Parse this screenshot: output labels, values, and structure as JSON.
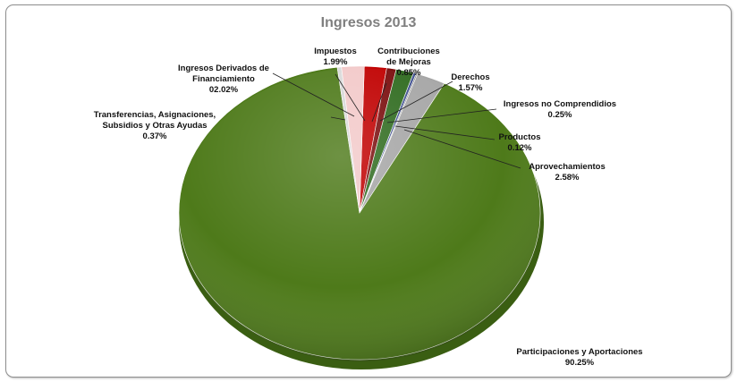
{
  "chart_data": {
    "type": "pie",
    "title": "Ingresos 2013",
    "slices": [
      {
        "label_lines": [
          "Impuestos",
          "1.99%"
        ],
        "value": 1.99,
        "color": "#c00000"
      },
      {
        "label_lines": [
          "Contribuciones",
          "de Mejoras",
          "0.85%"
        ],
        "value": 0.85,
        "color": "#7a0d0d"
      },
      {
        "label_lines": [
          "Derechos",
          "1.57%"
        ],
        "value": 1.57,
        "color": "#2f6b1f"
      },
      {
        "label_lines": [
          "Ingresos no Comprendidios",
          "0.25%"
        ],
        "value": 0.25,
        "color": "#3f4f8f"
      },
      {
        "label_lines": [
          "Productos",
          "0.12%"
        ],
        "value": 0.12,
        "color": "#7f7f7f"
      },
      {
        "label_lines": [
          "Aprovechamientos",
          "2.58%"
        ],
        "value": 2.58,
        "color": "#a6a6a6"
      },
      {
        "label_lines": [
          "Participaciones y Aportaciones",
          "90.25%"
        ],
        "value": 90.25,
        "color": "#4e7a1a"
      },
      {
        "label_lines": [
          "Transferencias, Asignaciones,",
          "Subsidios y Otras Ayudas",
          "0.37%"
        ],
        "value": 0.37,
        "color": "#d9d9d9"
      },
      {
        "label_lines": [
          "Ingresos Derivados de",
          "Financiamiento",
          "02.02%"
        ],
        "value": 2.02,
        "color": "#f2c9c9"
      }
    ],
    "legend": "none"
  }
}
